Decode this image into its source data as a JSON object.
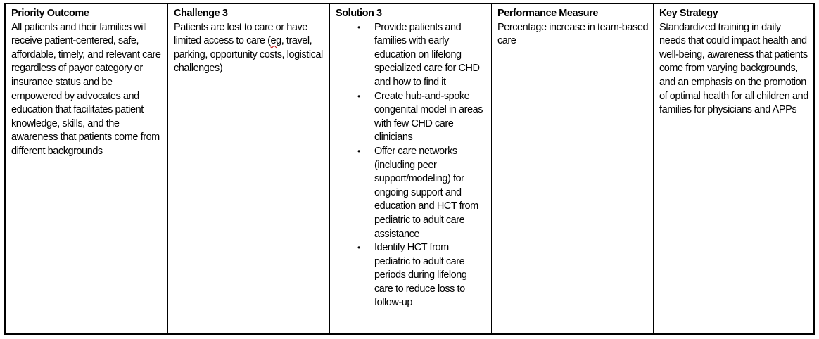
{
  "table": {
    "columns": [
      {
        "heading": "Priority Outcome",
        "body": "All patients and their families will receive patient-centered, safe, affordable, timely, and relevant care regardless of payor category or insurance status and be empowered by advocates and education that facilitates patient knowledge, skills, and the awareness that patients come from different backgrounds"
      },
      {
        "heading": "Challenge 3",
        "body_pre": "Patients are lost to care or have limited access to care (",
        "spellcheck_word": "eg",
        "body_post": ", travel, parking, opportunity costs, logistical challenges)"
      },
      {
        "heading": "Solution 3",
        "bullets": [
          "Provide patients and families with early education on lifelong specialized care for CHD and how to find it",
          "Create hub-and-spoke congenital model in areas with few CHD care clinicians",
          "Offer care networks (including peer support/modeling) for ongoing support and education and HCT from pediatric to adult care assistance",
          "Identify HCT from pediatric to adult care periods during lifelong care to reduce loss to follow-up"
        ],
        "bullet_glyph": "●"
      },
      {
        "heading": "Performance Measure",
        "body": "Percentage increase in team-based care"
      },
      {
        "heading": "Key Strategy",
        "body": "Standardized training in daily needs that could impact health and well-being, awareness that patients come from varying backgrounds, and an emphasis on the promotion of optimal health for all children and families for physicians and APPs"
      }
    ],
    "colors": {
      "border": "#000000",
      "text": "#000000",
      "spellcheck_underline": "#c00000"
    }
  }
}
